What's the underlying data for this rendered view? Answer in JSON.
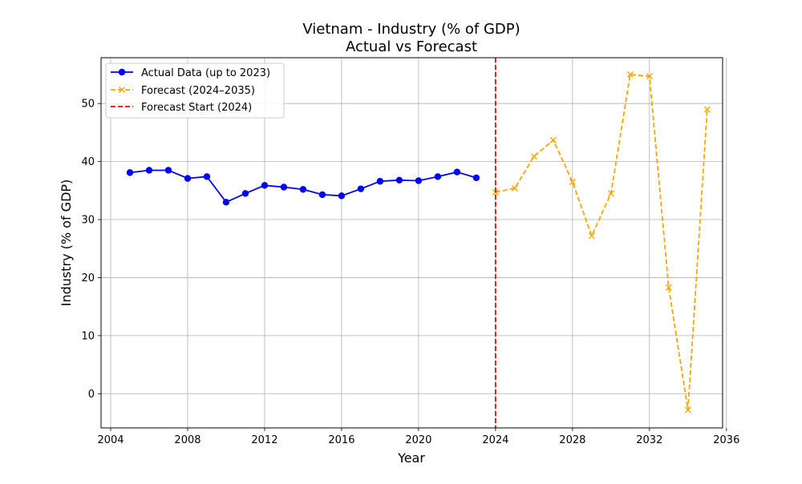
{
  "chart_data": {
    "type": "line",
    "title": "Vietnam - Industry (% of GDP)",
    "subtitle": "Actual vs Forecast",
    "xlabel": "Year",
    "ylabel": "Industry (% of GDP)",
    "xlim": [
      2003.5,
      2035.8
    ],
    "ylim": [
      -5.9,
      57.9
    ],
    "xticks": [
      2004,
      2008,
      2012,
      2016,
      2020,
      2024,
      2028,
      2032,
      2036
    ],
    "yticks": [
      0,
      10,
      20,
      30,
      40,
      50
    ],
    "grid": true,
    "legend_position": "top-left",
    "series": [
      {
        "name": "Actual Data (up to 2023)",
        "color": "#0000ff",
        "style": "solid",
        "marker": "circle",
        "x": [
          2005,
          2006,
          2007,
          2008,
          2009,
          2010,
          2011,
          2012,
          2013,
          2014,
          2015,
          2016,
          2017,
          2018,
          2019,
          2020,
          2021,
          2022,
          2023
        ],
        "y": [
          38.1,
          38.5,
          38.5,
          37.1,
          37.4,
          33.0,
          34.5,
          35.9,
          35.6,
          35.2,
          34.3,
          34.1,
          35.3,
          36.6,
          36.8,
          36.7,
          37.4,
          38.2,
          37.2
        ]
      },
      {
        "name": "Forecast (2024–2035)",
        "color": "#ffa500",
        "style": "dashed",
        "marker": "x",
        "x": [
          2024,
          2025,
          2026,
          2027,
          2028,
          2029,
          2030,
          2031,
          2032,
          2033,
          2034,
          2035
        ],
        "y": [
          34.7,
          35.4,
          40.9,
          43.7,
          36.5,
          27.2,
          34.5,
          55.0,
          54.7,
          18.3,
          -2.8,
          49.0
        ]
      }
    ],
    "vline": {
      "name": "Forecast Start (2024)",
      "x": 2024,
      "color": "#ff0000",
      "style": "dashed"
    }
  }
}
